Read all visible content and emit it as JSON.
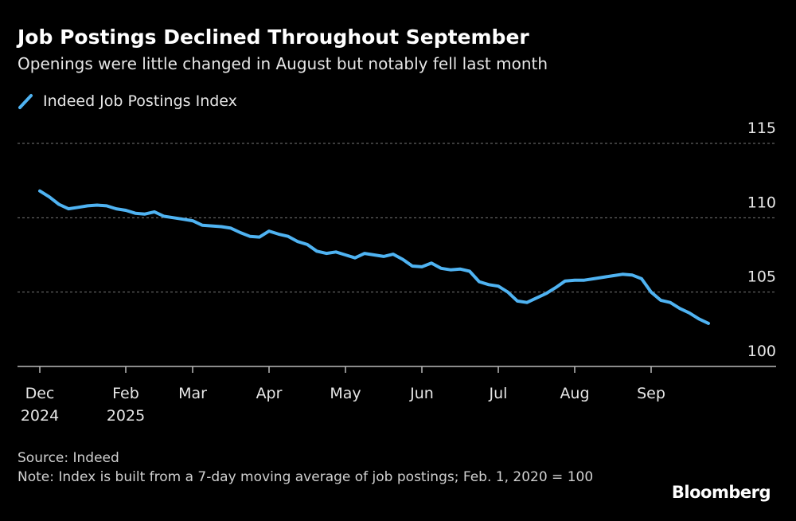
{
  "chart_data": {
    "type": "line",
    "title": "Job Postings Declined Throughout September",
    "subtitle": "Openings were little changed in August but notably fell last month",
    "source": "Source: Indeed",
    "note": "Note: Index is built from a 7-day moving average of job postings; Feb. 1, 2020 = 100",
    "brand": "Bloomberg",
    "grid": true,
    "legend": "top-left",
    "series": [
      {
        "name": "Indeed Job Postings Index",
        "color": "#4fb3f2",
        "x": [
          "2024-12",
          "2025-01",
          "2025-01",
          "2025-01",
          "2025-01",
          "2025-01",
          "2025-01",
          "2025-01",
          "2025-01",
          "2025-02",
          "2025-02",
          "2025-02",
          "2025-02",
          "2025-02",
          "2025-02",
          "2025-02",
          "2025-03",
          "2025-03",
          "2025-03",
          "2025-03",
          "2025-03",
          "2025-03",
          "2025-03",
          "2025-03",
          "2025-04",
          "2025-04",
          "2025-04",
          "2025-04",
          "2025-04",
          "2025-04",
          "2025-04",
          "2025-04",
          "2025-05",
          "2025-05",
          "2025-05",
          "2025-05",
          "2025-05",
          "2025-05",
          "2025-05",
          "2025-05",
          "2025-06",
          "2025-06",
          "2025-06",
          "2025-06",
          "2025-06",
          "2025-06",
          "2025-06",
          "2025-06",
          "2025-07",
          "2025-07",
          "2025-07",
          "2025-07",
          "2025-07",
          "2025-07",
          "2025-07",
          "2025-07",
          "2025-08",
          "2025-08",
          "2025-08",
          "2025-08",
          "2025-08",
          "2025-08",
          "2025-08",
          "2025-08",
          "2025-09",
          "2025-09",
          "2025-09",
          "2025-09",
          "2025-09",
          "2025-09",
          "2025-09"
        ],
        "values": [
          111.8,
          111.4,
          110.9,
          110.6,
          110.7,
          110.8,
          110.85,
          110.8,
          110.6,
          110.5,
          110.3,
          110.25,
          110.4,
          110.1,
          110.0,
          109.9,
          109.8,
          109.5,
          109.45,
          109.4,
          109.3,
          109.0,
          108.75,
          108.7,
          109.1,
          108.9,
          108.75,
          108.4,
          108.2,
          107.75,
          107.6,
          107.7,
          107.5,
          107.3,
          107.6,
          107.5,
          107.4,
          107.55,
          107.2,
          106.75,
          106.7,
          106.95,
          106.6,
          106.5,
          106.55,
          106.4,
          105.7,
          105.5,
          105.4,
          105.0,
          104.4,
          104.3,
          104.6,
          104.9,
          105.3,
          105.75,
          105.8,
          105.8,
          105.9,
          106.0,
          106.1,
          106.2,
          106.15,
          105.9,
          105.0,
          104.45,
          104.3,
          103.9,
          103.6,
          103.2,
          102.9
        ]
      }
    ],
    "xticks": [
      {
        "value": "2024-12",
        "label": "Dec 2024"
      },
      {
        "value": "2025-02",
        "label": "Feb 2025"
      },
      {
        "value": "2025-03",
        "label": "Mar"
      },
      {
        "value": "2025-04",
        "label": "Apr"
      },
      {
        "value": "2025-05",
        "label": "May"
      },
      {
        "value": "2025-06",
        "label": "Jun"
      },
      {
        "value": "2025-07",
        "label": "Jul"
      },
      {
        "value": "2025-08",
        "label": "Aug"
      },
      {
        "value": "2025-09",
        "label": "Sep"
      }
    ],
    "ylim": [
      100,
      115
    ],
    "yticks": [
      100,
      105,
      110,
      115
    ]
  }
}
